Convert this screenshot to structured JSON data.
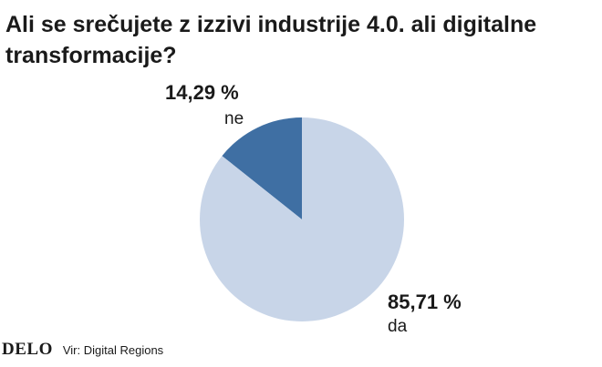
{
  "chart_data": {
    "type": "pie",
    "title": "Ali se srečujete z izzivi industrije 4.0. ali digitalne transformacije?",
    "slices": [
      {
        "label": "ne",
        "value": 14.29,
        "value_label": "14,29 %",
        "color": "#3f6fa3"
      },
      {
        "label": "da",
        "value": 85.71,
        "value_label": "85,71 %",
        "color": "#c8d5e8"
      }
    ]
  },
  "footer": {
    "logo": "DELO",
    "source": "Vir: Digital Regions"
  }
}
